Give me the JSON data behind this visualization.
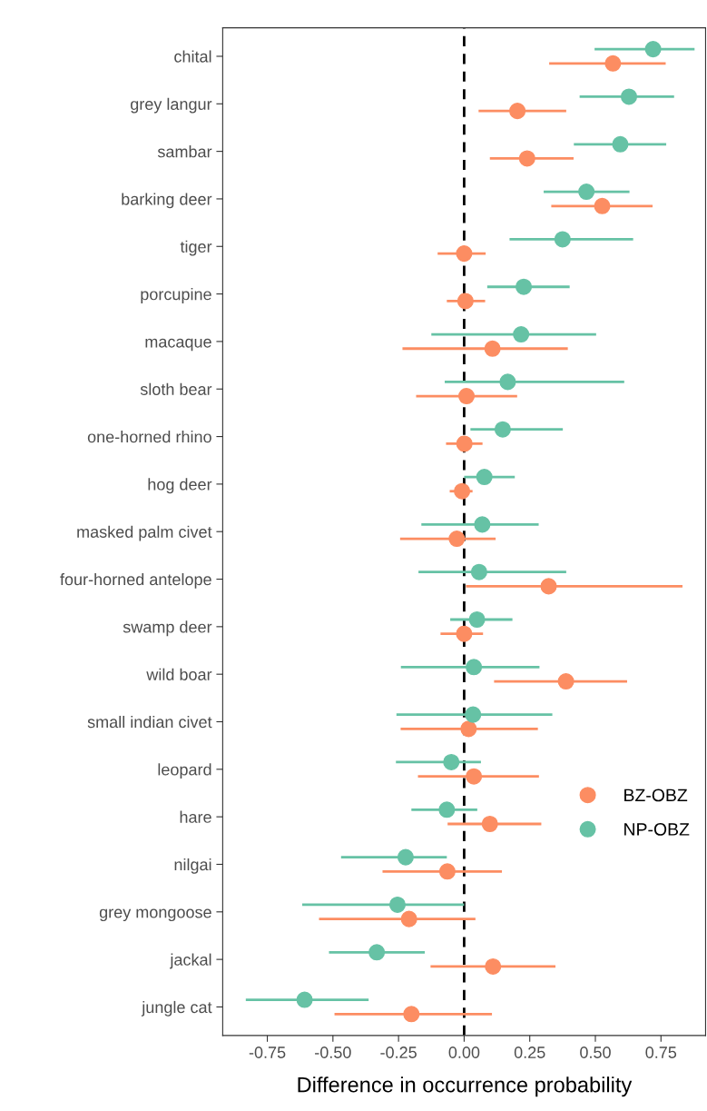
{
  "chart_data": {
    "type": "scatter",
    "orientation": "horizontal",
    "xlabel": "Difference in occurrence probability",
    "categories": [
      "chital",
      "grey langur",
      "sambar",
      "barking deer",
      "tiger",
      "porcupine",
      "macaque",
      "sloth bear",
      "one-horned rhino",
      "hog deer",
      "masked palm civet",
      "four-horned antelope",
      "swamp deer",
      "wild boar",
      "small indian civet",
      "leopard",
      "hare",
      "nilgai",
      "grey mongoose",
      "jackal",
      "jungle cat"
    ],
    "series": [
      {
        "name": "BZ-OBZ",
        "color": "#fc8d62",
        "values": [
          0.567,
          0.203,
          0.24,
          0.526,
          0.0,
          0.005,
          0.108,
          0.009,
          0.001,
          -0.008,
          -0.028,
          0.322,
          0.0,
          0.388,
          0.017,
          0.037,
          0.098,
          -0.064,
          -0.21,
          0.11,
          -0.201
        ],
        "errors": [
          [
            0.324,
            0.768
          ],
          [
            0.055,
            0.389
          ],
          [
            0.098,
            0.417
          ],
          [
            0.332,
            0.718
          ],
          [
            -0.101,
            0.082
          ],
          [
            -0.066,
            0.08
          ],
          [
            -0.235,
            0.395
          ],
          [
            -0.183,
            0.202
          ],
          [
            -0.069,
            0.07
          ],
          [
            -0.055,
            0.032
          ],
          [
            -0.244,
            0.12
          ],
          [
            0.007,
            0.832
          ],
          [
            -0.09,
            0.072
          ],
          [
            0.114,
            0.621
          ],
          [
            -0.242,
            0.281
          ],
          [
            -0.176,
            0.285
          ],
          [
            -0.063,
            0.294
          ],
          [
            -0.311,
            0.144
          ],
          [
            -0.553,
            0.043
          ],
          [
            -0.128,
            0.348
          ],
          [
            -0.494,
            0.106
          ]
        ]
      },
      {
        "name": "NP-OBZ",
        "color": "#66c2a5",
        "values": [
          0.72,
          0.628,
          0.595,
          0.466,
          0.375,
          0.227,
          0.217,
          0.166,
          0.147,
          0.077,
          0.069,
          0.057,
          0.049,
          0.037,
          0.034,
          -0.049,
          -0.066,
          -0.223,
          -0.254,
          -0.333,
          -0.608
        ],
        "errors": [
          [
            0.497,
            0.878
          ],
          [
            0.44,
            0.8
          ],
          [
            0.418,
            0.77
          ],
          [
            0.303,
            0.63
          ],
          [
            0.173,
            0.644
          ],
          [
            0.088,
            0.402
          ],
          [
            -0.125,
            0.503
          ],
          [
            -0.074,
            0.61
          ],
          [
            0.024,
            0.376
          ],
          [
            0.0,
            0.193
          ],
          [
            -0.163,
            0.284
          ],
          [
            -0.174,
            0.389
          ],
          [
            -0.053,
            0.184
          ],
          [
            -0.241,
            0.287
          ],
          [
            -0.258,
            0.336
          ],
          [
            -0.26,
            0.064
          ],
          [
            -0.201,
            0.05
          ],
          [
            -0.469,
            -0.066
          ],
          [
            -0.617,
            0.0
          ],
          [
            -0.515,
            -0.15
          ],
          [
            -0.832,
            -0.364
          ]
        ]
      }
    ],
    "xlim": [
      -0.92,
      0.92
    ],
    "xticks": [
      {
        "value": -0.75,
        "label": "-0.75"
      },
      {
        "value": -0.5,
        "label": "-0.50"
      },
      {
        "value": -0.25,
        "label": "-0.25"
      },
      {
        "value": 0,
        "label": "0.00"
      },
      {
        "value": 0.25,
        "label": "0.25"
      },
      {
        "value": 0.5,
        "label": "0.50"
      },
      {
        "value": 0.75,
        "label": "0.75"
      }
    ],
    "ref_lines": [
      {
        "axis": "x",
        "value": 0,
        "color": "#000000",
        "line_style": "dashed"
      }
    ],
    "marker": "circle",
    "grid": false,
    "legend": "right"
  }
}
